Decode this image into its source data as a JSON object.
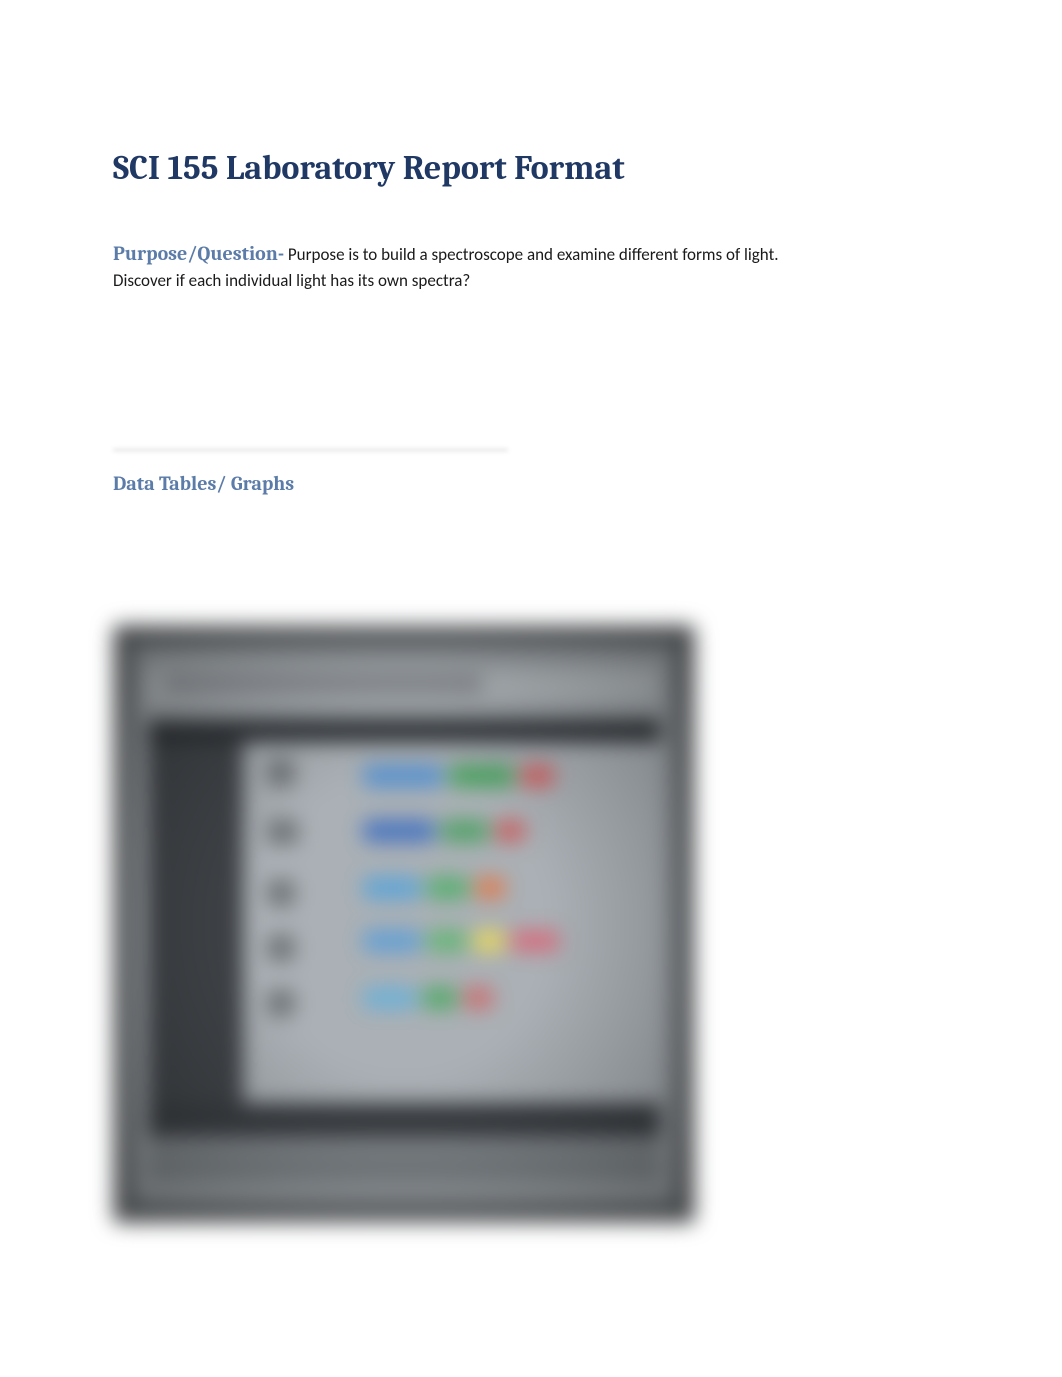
{
  "title": "SCI 155 Laboratory Report Format",
  "purpose": {
    "heading": "Purpose/Question-",
    "text_part1": " Purpose is to build a spectroscope and examine different forms of light.",
    "text_part2": "Discover if each individual light has its own spectra?"
  },
  "data_section": {
    "heading": "Data Tables/ Graphs"
  },
  "colors": {
    "title_color": "#1f3864",
    "heading_color": "#5b7ba8",
    "body_color": "#1a1a1a",
    "page_bg": "#ffffff"
  },
  "spectra_photo": {
    "type": "blurred-photo-of-table",
    "description": "Photograph of a printed data table showing spectra for different light sources, heavily blurred",
    "rows": [
      {
        "colors": [
          "#4f8fd0",
          "#3fa257",
          "#d45a5a"
        ],
        "widths": [
          80,
          65,
          34
        ]
      },
      {
        "colors": [
          "#3d6fc0",
          "#49a060",
          "#c85b5b"
        ],
        "widths": [
          72,
          48,
          30
        ]
      },
      {
        "colors": [
          "#56a4d8",
          "#4fae68",
          "#e07a4a"
        ],
        "widths": [
          58,
          42,
          30
        ]
      },
      {
        "colors": [
          "#5c9fd6",
          "#5fb670",
          "#e8d85a",
          "#d66a7a"
        ],
        "widths": [
          58,
          40,
          32,
          48
        ]
      },
      {
        "colors": [
          "#68b0d8",
          "#4aa860",
          "#cc6a6a"
        ],
        "widths": [
          54,
          34,
          30
        ]
      }
    ],
    "background": "#6b6f72",
    "paper": "#9da3a7"
  }
}
